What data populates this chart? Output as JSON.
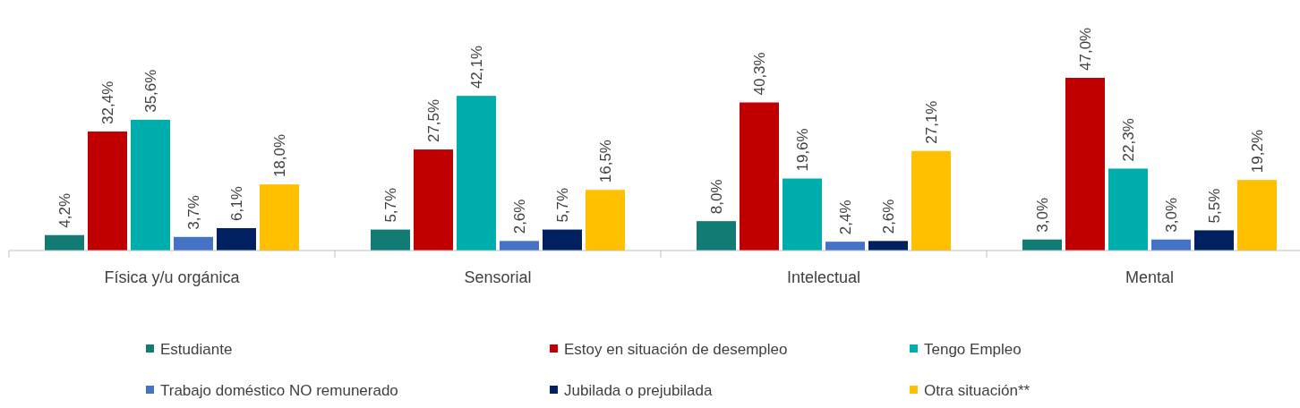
{
  "chart_data": {
    "type": "bar",
    "categories": [
      "Física y/u orgánica",
      "Sensorial",
      "Intelectual",
      "Mental"
    ],
    "series": [
      {
        "name": "Estudiante",
        "color": "#127c74",
        "values": [
          4.2,
          5.7,
          8.0,
          3.0
        ],
        "value_labels": [
          "4,2%",
          "5,7%",
          "8,0%",
          "3,0%"
        ]
      },
      {
        "name": "Estoy en situación de desempleo",
        "color": "#c00000",
        "values": [
          32.4,
          27.5,
          40.3,
          47.0
        ],
        "value_labels": [
          "32,4%",
          "27,5%",
          "40,3%",
          "47,0%"
        ]
      },
      {
        "name": "Tengo Empleo",
        "color": "#00adad",
        "values": [
          35.6,
          42.1,
          19.6,
          22.3
        ],
        "value_labels": [
          "35,6%",
          "42,1%",
          "19,6%",
          "22,3%"
        ]
      },
      {
        "name": "Trabajo doméstico NO remunerado",
        "color": "#4472c4",
        "values": [
          3.7,
          2.6,
          2.4,
          3.0
        ],
        "value_labels": [
          "3,7%",
          "2,6%",
          "2,4%",
          "3,0%"
        ]
      },
      {
        "name": "Jubilada o prejubilada",
        "color": "#002060",
        "values": [
          6.1,
          5.7,
          2.6,
          5.5
        ],
        "value_labels": [
          "6,1%",
          "5,7%",
          "2,6%",
          "5,5%"
        ]
      },
      {
        "name": "Otra situación**",
        "color": "#ffc000",
        "values": [
          18.0,
          16.5,
          27.1,
          19.2
        ],
        "value_labels": [
          "18,0%",
          "16,5%",
          "27,1%",
          "19,2%"
        ]
      }
    ],
    "legend": "bottom"
  }
}
